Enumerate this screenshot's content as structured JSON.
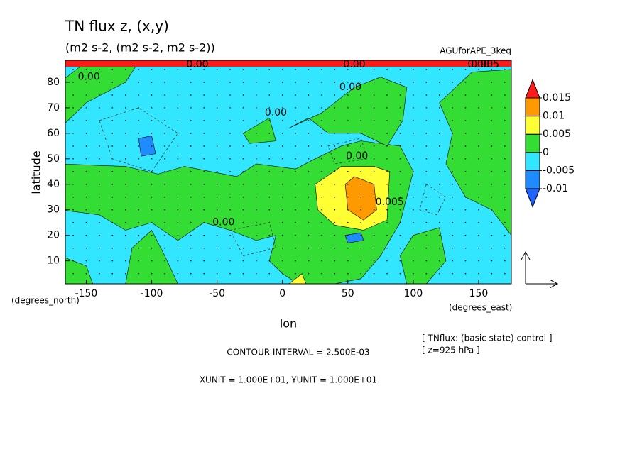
{
  "chart_data": {
    "type": "contour",
    "title": "TN flux z, (x,y)",
    "subtitle": "(m2 s-2, (m2 s-2, m2 s-2))",
    "run_name": "AGUforAPE_3keq",
    "x_label": "lon",
    "y_label": "latitude",
    "x_unit": "(degrees_east)",
    "y_unit": "(degrees_north)",
    "xlim": [
      -166,
      175
    ],
    "ylim": [
      1,
      88.6
    ],
    "xticks": [
      -150,
      -100,
      -50,
      0,
      50,
      100,
      150
    ],
    "yticks": [
      10,
      20,
      30,
      40,
      50,
      60,
      70,
      80
    ],
    "colorbar": {
      "levels": [
        -0.01,
        -0.005,
        0,
        0.005,
        0.01,
        0.015
      ],
      "colors": [
        "#1e8cff",
        "#33e6ff",
        "#33dd33",
        "#ffff33",
        "#ff9900",
        "#ff1a1a"
      ],
      "under_color": "#1e64ff"
    },
    "contour_labels": [
      "0.00",
      "0.00",
      "0.00",
      "0.00",
      "0.00",
      "0.00",
      "0.00",
      "0.005",
      "0.00",
      "0.00",
      "0.005"
    ],
    "notes": [
      "CONTOUR INTERVAL = 2.500E-03",
      "XUNIT = 1.000E+01, YUNIT = 1.000E+01"
    ],
    "info": [
      "[ TNflux: (basic state) control ]",
      "[ z=925 hPa ]"
    ]
  }
}
